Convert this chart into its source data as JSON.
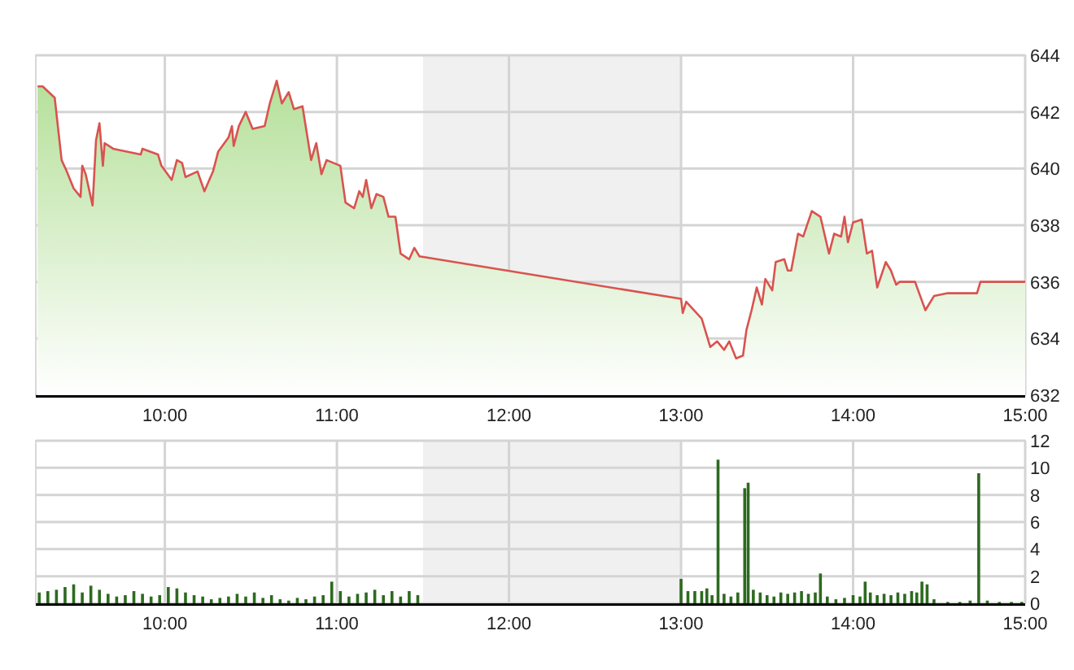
{
  "chart_data": [
    {
      "type": "area",
      "xlim": [
        9.25,
        15
      ],
      "ylim": [
        632,
        644
      ],
      "yticks": [
        632,
        634,
        636,
        638,
        640,
        642,
        644
      ],
      "grid": true,
      "xticks": [
        {
          "value": 10,
          "label": "10:00"
        },
        {
          "value": 11,
          "label": "11:00"
        },
        {
          "value": 12,
          "label": "12:00"
        },
        {
          "value": 13,
          "label": "13:00"
        },
        {
          "value": 14,
          "label": "14:00"
        },
        {
          "value": 15,
          "label": "15:00"
        }
      ],
      "bands": [
        {
          "axis": "x",
          "from": 11.5,
          "to": 13,
          "color": "#f0f0f0"
        }
      ],
      "series": [
        {
          "color": "#d9534f",
          "x": [
            9.26,
            9.29,
            9.36,
            9.4,
            9.43,
            9.47,
            9.51,
            9.52,
            9.54,
            9.58,
            9.6,
            9.62,
            9.64,
            9.65,
            9.7,
            9.86,
            9.87,
            9.96,
            9.98,
            10.04,
            10.07,
            10.1,
            10.12,
            10.19,
            10.23,
            10.28,
            10.31,
            10.37,
            10.39,
            10.4,
            10.43,
            10.47,
            10.51,
            10.58,
            10.61,
            10.65,
            10.68,
            10.72,
            10.75,
            10.8,
            10.85,
            10.88,
            10.91,
            10.94,
            11.02,
            11.05,
            11.1,
            11.13,
            11.15,
            11.17,
            11.2,
            11.23,
            11.27,
            11.3,
            11.34,
            11.37,
            11.42,
            11.45,
            11.48,
            13.0,
            13.01,
            13.03,
            13.12,
            13.17,
            13.21,
            13.25,
            13.28,
            13.32,
            13.36,
            13.38,
            13.41,
            13.44,
            13.47,
            13.49,
            13.53,
            13.55,
            13.6,
            13.62,
            13.64,
            13.68,
            13.71,
            13.76,
            13.81,
            13.86,
            13.89,
            13.93,
            13.95,
            13.97,
            14.0,
            14.05,
            14.08,
            14.11,
            14.14,
            14.19,
            14.22,
            14.25,
            14.27,
            14.36,
            14.39,
            14.42,
            14.47,
            14.55,
            14.72,
            14.74,
            15.0
          ],
          "values": [
            642.9,
            642.9,
            642.5,
            640.3,
            639.9,
            639.3,
            639.0,
            640.1,
            639.8,
            638.7,
            641.0,
            641.6,
            640.1,
            640.9,
            640.7,
            640.5,
            640.7,
            640.5,
            640.1,
            639.6,
            640.3,
            640.2,
            639.7,
            639.9,
            639.2,
            639.9,
            640.6,
            641.1,
            641.5,
            640.8,
            641.5,
            642.0,
            641.4,
            641.5,
            642.3,
            643.1,
            642.3,
            642.7,
            642.1,
            642.2,
            640.3,
            640.9,
            639.8,
            640.3,
            640.1,
            638.8,
            638.6,
            639.2,
            639.0,
            639.6,
            638.6,
            639.1,
            639.0,
            638.3,
            638.3,
            637.0,
            636.8,
            637.2,
            636.9,
            635.4,
            634.9,
            635.3,
            634.7,
            633.7,
            633.9,
            633.6,
            633.9,
            633.3,
            633.4,
            634.3,
            635.0,
            635.8,
            635.2,
            636.1,
            635.7,
            636.7,
            636.8,
            636.4,
            636.4,
            637.7,
            637.6,
            638.5,
            638.3,
            637.0,
            637.7,
            637.6,
            638.3,
            637.4,
            638.1,
            638.2,
            637.0,
            637.1,
            635.8,
            636.7,
            636.4,
            635.9,
            636.0,
            636.0,
            635.5,
            635.0,
            635.5,
            635.6,
            635.6,
            636.0,
            636.0
          ]
        }
      ]
    },
    {
      "type": "bar",
      "xlim": [
        9.25,
        15
      ],
      "ylim": [
        0,
        12
      ],
      "yticks": [
        0,
        2,
        4,
        6,
        8,
        10,
        12
      ],
      "grid": true,
      "xticks": [
        {
          "value": 10,
          "label": "10:00"
        },
        {
          "value": 11,
          "label": "11:00"
        },
        {
          "value": 12,
          "label": "12:00"
        },
        {
          "value": 13,
          "label": "13:00"
        },
        {
          "value": 14,
          "label": "14:00"
        },
        {
          "value": 15,
          "label": "15:00"
        }
      ],
      "bands": [
        {
          "axis": "x",
          "from": 11.5,
          "to": 13,
          "color": "#f0f0f0"
        }
      ],
      "series": [
        {
          "color": "#2d6a1f",
          "x": [
            9.27,
            9.32,
            9.37,
            9.42,
            9.47,
            9.52,
            9.57,
            9.62,
            9.67,
            9.72,
            9.77,
            9.82,
            9.87,
            9.92,
            9.97,
            10.02,
            10.07,
            10.12,
            10.17,
            10.22,
            10.27,
            10.32,
            10.37,
            10.42,
            10.47,
            10.52,
            10.57,
            10.62,
            10.67,
            10.72,
            10.77,
            10.82,
            10.87,
            10.92,
            10.97,
            11.02,
            11.07,
            11.12,
            11.17,
            11.22,
            11.27,
            11.32,
            11.37,
            11.42,
            11.47,
            13.0,
            13.04,
            13.08,
            13.12,
            13.15,
            13.18,
            13.215,
            13.25,
            13.29,
            13.33,
            13.37,
            13.39,
            13.42,
            13.46,
            13.5,
            13.54,
            13.58,
            13.62,
            13.66,
            13.7,
            13.74,
            13.78,
            13.81,
            13.85,
            13.9,
            13.95,
            14.0,
            14.04,
            14.07,
            14.1,
            14.14,
            14.18,
            14.22,
            14.26,
            14.3,
            14.34,
            14.37,
            14.4,
            14.43,
            14.47,
            14.55,
            14.62,
            14.68,
            14.73,
            14.78,
            14.85,
            14.92,
            14.98
          ],
          "values": [
            0.8,
            0.9,
            1.0,
            1.2,
            1.4,
            0.8,
            1.3,
            1.0,
            0.7,
            0.5,
            0.6,
            0.9,
            0.7,
            0.5,
            0.6,
            1.2,
            1.1,
            0.8,
            0.6,
            0.5,
            0.3,
            0.4,
            0.5,
            0.7,
            0.5,
            0.8,
            0.4,
            0.6,
            0.3,
            0.2,
            0.4,
            0.3,
            0.5,
            0.6,
            1.6,
            0.9,
            0.5,
            0.7,
            0.8,
            1.0,
            0.6,
            0.9,
            0.5,
            0.9,
            0.6,
            1.8,
            0.9,
            0.9,
            0.9,
            1.1,
            0.6,
            10.6,
            0.7,
            0.5,
            0.8,
            8.5,
            8.9,
            1.0,
            0.8,
            0.6,
            0.5,
            0.8,
            0.7,
            0.8,
            0.9,
            0.7,
            0.8,
            2.2,
            0.5,
            0.3,
            0.4,
            0.6,
            0.5,
            1.6,
            0.8,
            0.6,
            0.7,
            0.6,
            0.8,
            0.7,
            0.9,
            0.8,
            1.6,
            1.4,
            0.3,
            0.1,
            0.1,
            0.2,
            9.6,
            0.2,
            0.1,
            0.1,
            0.1
          ]
        }
      ]
    }
  ]
}
